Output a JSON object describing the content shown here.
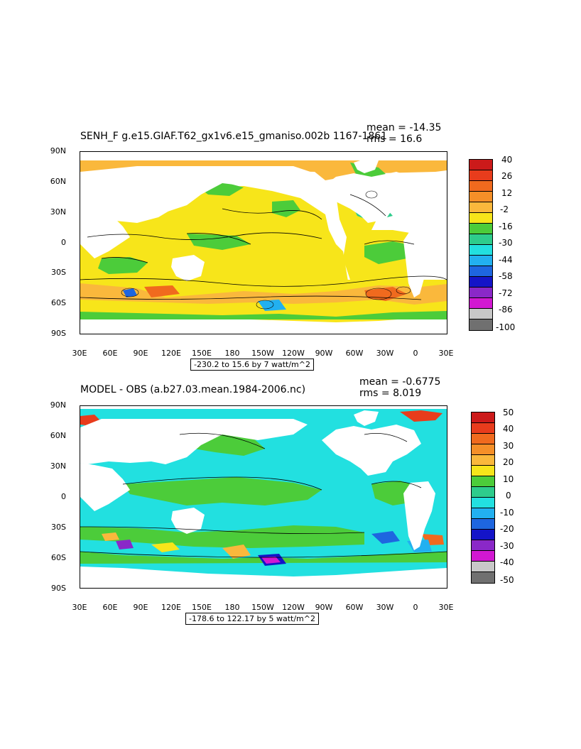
{
  "panels": [
    {
      "title": "SENH_F g.e15.GIAF.T62_gx1v6.e15_gmaniso.002b 1167-1861",
      "mean": "mean = -14.35",
      "rms": "rms = 16.6",
      "range": "-230.2 to 15.6 by 7 watt/m^2",
      "lat_labels": [
        "90N",
        "60N",
        "30N",
        "0",
        "30S",
        "60S",
        "90S"
      ],
      "lon_labels": [
        "30E",
        "60E",
        "90E",
        "120E",
        "150E",
        "180",
        "150W",
        "120W",
        "90W",
        "60W",
        "30W",
        "0",
        "30E"
      ],
      "colorbar": {
        "labels": [
          "40",
          "26",
          "12",
          "-2",
          "-16",
          "-30",
          "-44",
          "-58",
          "-72",
          "-86",
          "-100"
        ],
        "colors": [
          "#cc1a1a",
          "#e83c1c",
          "#f06a1e",
          "#f58f28",
          "#fab83c",
          "#f7e51a",
          "#4ccc3a",
          "#2ecc8c",
          "#22e0e0",
          "#22b0f0",
          "#1e66e0",
          "#1414c8",
          "#8a28c8",
          "#d218d2",
          "#c8c8c8",
          "#707070"
        ]
      }
    },
    {
      "title": "MODEL - OBS (a.b27.03.mean.1984-2006.nc)",
      "mean": "mean = -0.6775",
      "rms": "rms = 8.019",
      "range": "-178.6 to 122.17 by 5 watt/m^2",
      "lat_labels": [
        "90N",
        "60N",
        "30N",
        "0",
        "30S",
        "60S",
        "90S"
      ],
      "lon_labels": [
        "30E",
        "60E",
        "90E",
        "120E",
        "150E",
        "180",
        "150W",
        "120W",
        "90W",
        "60W",
        "30W",
        "0",
        "30E"
      ],
      "colorbar": {
        "labels": [
          "50",
          "40",
          "30",
          "20",
          "10",
          "0",
          "-10",
          "-20",
          "-30",
          "-40",
          "-50"
        ],
        "colors": [
          "#cc1a1a",
          "#e83c1c",
          "#f06a1e",
          "#f58f28",
          "#fab83c",
          "#f7e51a",
          "#4ccc3a",
          "#2ecc8c",
          "#22e0e0",
          "#22b0f0",
          "#1e66e0",
          "#1414c8",
          "#8a28c8",
          "#d218d2",
          "#c8c8c8",
          "#707070"
        ]
      }
    }
  ]
}
